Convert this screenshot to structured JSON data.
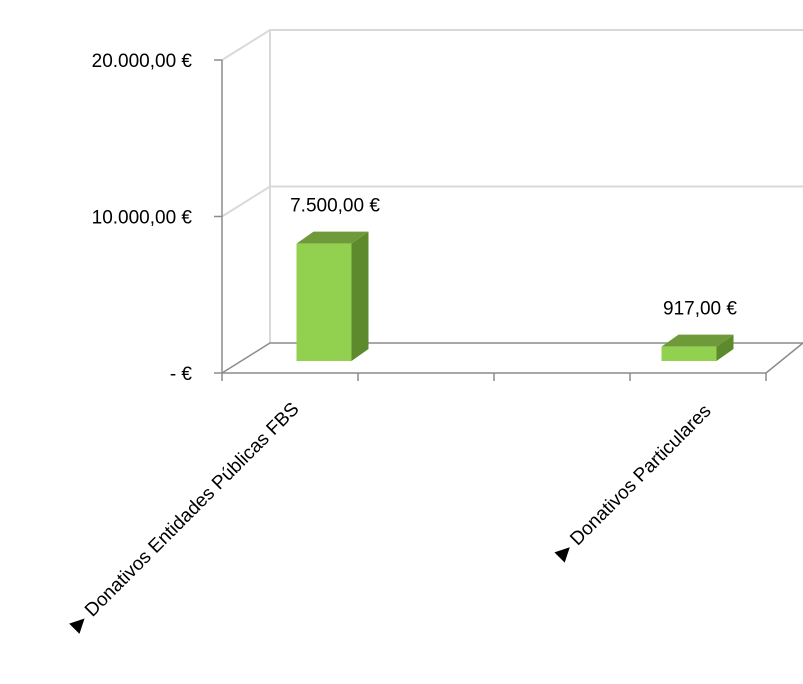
{
  "chart_data": {
    "type": "bar",
    "title": "",
    "xlabel": "",
    "ylabel": "",
    "categories": [
      "Donativos Entidades Públicas FBS",
      "Donativos Particulares"
    ],
    "values": [
      7500,
      917
    ],
    "value_labels": [
      "7.500,00 €",
      "917,00 €"
    ],
    "y_ticks": [
      0,
      10000,
      20000
    ],
    "y_tick_labels": [
      "-   €",
      "10.000,00 €",
      "20.000,00 €"
    ],
    "ylim": [
      0,
      20000
    ],
    "grid": true,
    "legend": "none",
    "style": "3d-column",
    "colors": {
      "bar_front": "#92d050",
      "bar_top": "#6f9a3a",
      "bar_side": "#5e8a2e",
      "gridline": "#d9d9d9",
      "axis": "#8c8c8c"
    },
    "category_marker": "▶"
  }
}
